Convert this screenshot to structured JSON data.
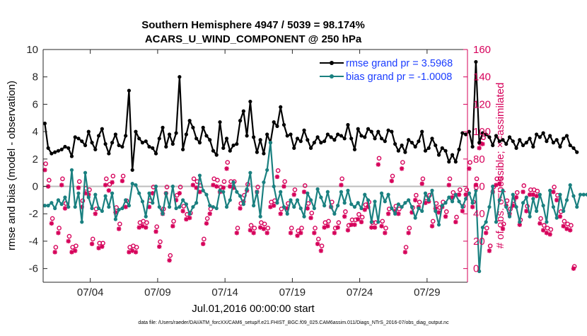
{
  "colors": {
    "rmse": "#000000",
    "bias": "#1a8080",
    "obs": "#d6005a",
    "zero_line": "#bdbdbd",
    "legend_text": "#1a3cff"
  },
  "chart_data": {
    "type": "line",
    "title_line1": "Southern Hemisphere 4947 / 5039 = 98.174%",
    "title_line2": "ACARS_U_WIND_COMPONENT @ 250 hPa",
    "xlabel": "Jul.01,2016 00:00:00 start",
    "ylabel_left": "rmse and bias (model - observation)",
    "ylabel_right": "# of obs: o=possible; ×=assimilated",
    "footer": "data file: /Users/raeder/DAI/ATM_forcXX/CAM6_setup/f.e21.FHIST_BGC.f09_025.CAM6assim.011/Diags_NTrS_2016-07/obs_diag_output.nc",
    "xlim": [
      0.5,
      32
    ],
    "ylim_left": [
      -7,
      10
    ],
    "ylim_right": [
      -10,
      160
    ],
    "grid": false,
    "legend_position": "top-right",
    "x_ticks": [
      4,
      9,
      14,
      19,
      24,
      29
    ],
    "x_tick_labels": [
      "07/04",
      "07/09",
      "07/14",
      "07/19",
      "07/24",
      "07/29"
    ],
    "y_left_ticks": [
      -6,
      -4,
      -2,
      0,
      2,
      4,
      6,
      8,
      10
    ],
    "y_left_tick_labels": [
      "-6",
      "-4",
      "-2",
      "0",
      "2",
      "4",
      "6",
      "8",
      "10"
    ],
    "y_right_ticks": [
      0,
      20,
      40,
      60,
      80,
      100,
      120,
      140,
      160
    ],
    "y_right_tick_labels": [
      "0",
      "20",
      "40",
      "60",
      "80",
      "100",
      "120",
      "140",
      "160"
    ],
    "x_start": 0.625,
    "x_step": 0.25,
    "series": [
      {
        "name": "rmse grand pr = 3.5968",
        "axis": "left",
        "values": [
          4.6,
          2.8,
          2.4,
          2.5,
          2.6,
          2.7,
          2.9,
          2.8,
          2.2,
          3.6,
          3.5,
          3.3,
          3.0,
          4.0,
          3.2,
          2.7,
          3.7,
          4.2,
          3.1,
          2.4,
          3.2,
          3.8,
          3.0,
          2.9,
          3.7,
          7.0,
          1.2,
          4.0,
          3.5,
          3.2,
          3.3,
          2.9,
          2.8,
          2.4,
          3.5,
          4.3,
          2.9,
          3.8,
          3.1,
          3.9,
          8.0,
          2.7,
          3.8,
          4.8,
          4.3,
          3.5,
          3.2,
          4.3,
          3.7,
          3.4,
          2.6,
          2.3,
          4.7,
          2.8,
          3.5,
          2.6,
          3.0,
          3.1,
          4.8,
          5.5,
          3.7,
          6.2,
          3.6,
          2.5,
          3.4,
          2.4,
          3.8,
          3.2,
          4.7,
          4.4,
          5.8,
          4.5,
          3.7,
          3.8,
          2.8,
          3.5,
          3.3,
          4.1,
          3.4,
          2.8,
          3.2,
          3.6,
          3.2,
          3.3,
          3.8,
          3.6,
          3.4,
          3.8,
          3.7,
          3.5,
          4.5,
          3.5,
          2.7,
          4.2,
          3.7,
          3.6,
          4.2,
          4.0,
          3.5,
          4.0,
          3.5,
          3.3,
          4.1,
          4.0,
          3.1,
          2.6,
          3.0,
          2.5,
          3.4,
          3.2,
          2.9,
          3.3,
          4.0,
          2.6,
          2.8,
          3.5,
          3.0,
          2.3,
          2.8,
          2.6,
          1.8,
          2.3,
          1.8,
          2.7,
          3.9,
          3.8,
          4.0,
          2.9,
          9.1,
          3.2,
          3.9,
          3.8,
          3.6,
          3.0,
          3.7,
          3.3,
          3.4,
          3.1,
          3.6,
          3.3,
          2.8,
          3.4,
          3.0,
          3.2,
          3.5,
          2.9,
          3.8,
          3.6,
          3.9,
          3.3,
          3.7,
          3.2,
          3.4,
          2.9,
          3.5,
          3.7,
          3.0,
          2.8,
          2.5
        ],
        "color": "#000000"
      },
      {
        "name": "bias grand pr = -1.0008",
        "axis": "left",
        "values": [
          -1.4,
          -1.4,
          -1.2,
          -1.6,
          -1.0,
          -1.3,
          -0.8,
          -1.5,
          1.2,
          -1.5,
          -0.5,
          -2.6,
          1.0,
          -0.8,
          -1.6,
          -0.6,
          -1.6,
          -1.8,
          -0.7,
          -1.5,
          -0.5,
          -2.4,
          -1.7,
          -1.6,
          -1.0,
          -1.4,
          0.2,
          0.1,
          -0.5,
          -1.1,
          -2.2,
          -0.5,
          -1.2,
          0.0,
          -1.5,
          -2.0,
          -0.5,
          -1.5,
          0.0,
          -1.6,
          -1.5,
          -1.0,
          -1.3,
          -2.0,
          -1.5,
          -1.2,
          0.8,
          -0.3,
          -0.6,
          -1.4,
          -1.5,
          -1.6,
          -0.3,
          -0.4,
          -1.5,
          -1.0,
          0.3,
          -0.4,
          -0.7,
          -1.3,
          -0.2,
          1.0,
          -1.4,
          -0.4,
          -2.2,
          0.3,
          1.2,
          3.2,
          0.0,
          -1.2,
          -0.4,
          -1.5,
          -2.0,
          -1.0,
          -1.5,
          -1.0,
          -1.6,
          -2.2,
          -0.5,
          -1.0,
          -1.6,
          -0.2,
          -0.8,
          -1.4,
          -0.4,
          -1.5,
          -2.0,
          -1.4,
          -0.4,
          -1.2,
          -0.3,
          -1.3,
          -1.5,
          -1.2,
          -1.6,
          -0.6,
          -1.0,
          -2.6,
          -1.1,
          -2.6,
          -0.5,
          -1.1,
          -0.6,
          -1.6,
          -2.0,
          -1.3,
          -1.5,
          -1.2,
          -1.0,
          -1.5,
          -2.3,
          -1.6,
          -1.8,
          -0.5,
          -1.0,
          -0.3,
          -1.8,
          -2.8,
          -1.4,
          -1.2,
          -0.8,
          -1.1,
          -0.6,
          -1.1,
          -1.5,
          -0.9,
          -0.5,
          -1.2,
          -0.3,
          -6.2,
          -3.0,
          -2.6,
          -1.5,
          0.0,
          -2.6,
          -1.0,
          -0.3,
          -1.5,
          -2.2,
          -0.6,
          -1.5,
          -2.6,
          -1.2,
          -0.8,
          -2.2,
          -0.9,
          -1.8,
          -0.6,
          -1.4,
          -2.6,
          -0.3,
          -1.5,
          -2.3,
          -0.6,
          -1.8,
          -1.0,
          0.1,
          -0.7,
          -1.5,
          -0.6,
          -0.6,
          -0.6
        ],
        "color": "#1a8080"
      },
      {
        "name": "obs possible",
        "axis": "right",
        "values": [
          75,
          63,
          35,
          14,
          28,
          64,
          46,
          22,
          14,
          15,
          62,
          48,
          57,
          56,
          20,
          42,
          17,
          17,
          64,
          60,
          66,
          43,
          31,
          66,
          48,
          14,
          15,
          14,
          32,
          33,
          32,
          48,
          58,
          29,
          18,
          42,
          58,
          8,
          33,
          52,
          58,
          44,
          38,
          39,
          64,
          62,
          59,
          20,
          35,
          42,
          64,
          63,
          58,
          62,
          76,
          62,
          62,
          28,
          46,
          52,
          60,
          30,
          28,
          58,
          32,
          31,
          28,
          47,
          48,
          70,
          42,
          62,
          46,
          28,
          56,
          26,
          28,
          59,
          46,
          39,
          28,
          20,
          15,
          32,
          33,
          47,
          28,
          32,
          64,
          40,
          30,
          34,
          34,
          38,
          36,
          45,
          47,
          32,
          32,
          79,
          33,
          28,
          42,
          66,
          44,
          42,
          76,
          14,
          28,
          43,
          52,
          47,
          64,
          50,
          52,
          33,
          46,
          43,
          47,
          40,
          64,
          54,
          36,
          56,
          44,
          56,
          76,
          47,
          64,
          90,
          94,
          28,
          15,
          58,
          64,
          64,
          31,
          48,
          42,
          48,
          54,
          34,
          59,
          44,
          56,
          56,
          55,
          35,
          30,
          28,
          27,
          58,
          52,
          40,
          33,
          31,
          30,
          0
        ],
        "color": "#d6005a"
      },
      {
        "name": "obs assimilated",
        "axis": "right",
        "values": [
          72,
          60,
          33,
          12,
          26,
          61,
          44,
          20,
          12,
          13,
          59,
          45,
          55,
          54,
          18,
          40,
          15,
          16,
          61,
          57,
          63,
          41,
          29,
          64,
          45,
          12,
          13,
          12,
          30,
          31,
          30,
          45,
          55,
          27,
          16,
          40,
          55,
          6,
          31,
          50,
          55,
          42,
          36,
          37,
          61,
          59,
          56,
          18,
          33,
          40,
          61,
          60,
          56,
          59,
          73,
          60,
          59,
          26,
          44,
          49,
          57,
          28,
          26,
          56,
          30,
          29,
          26,
          45,
          46,
          67,
          40,
          60,
          44,
          26,
          54,
          24,
          26,
          56,
          44,
          37,
          26,
          18,
          13,
          30,
          31,
          45,
          26,
          30,
          61,
          38,
          28,
          32,
          32,
          36,
          34,
          43,
          45,
          30,
          30,
          76,
          31,
          26,
          40,
          64,
          42,
          40,
          73,
          12,
          26,
          41,
          50,
          45,
          62,
          48,
          49,
          31,
          44,
          41,
          45,
          38,
          61,
          52,
          34,
          54,
          42,
          54,
          73,
          45,
          61,
          88,
          91,
          26,
          13,
          56,
          61,
          62,
          29,
          46,
          40,
          46,
          52,
          32,
          56,
          42,
          54,
          54,
          53,
          33,
          28,
          26,
          25,
          56,
          50,
          38,
          31,
          29,
          28,
          0
        ],
        "color": "#d6005a"
      }
    ]
  }
}
